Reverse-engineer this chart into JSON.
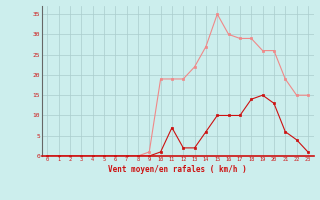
{
  "x": [
    0,
    1,
    2,
    3,
    4,
    5,
    6,
    7,
    8,
    9,
    10,
    11,
    12,
    13,
    14,
    15,
    16,
    17,
    18,
    19,
    20,
    21,
    22,
    23
  ],
  "rafales": [
    0,
    0,
    0,
    0,
    0,
    0,
    0,
    0,
    0,
    1,
    19,
    19,
    19,
    22,
    27,
    35,
    30,
    29,
    29,
    26,
    26,
    19,
    15,
    15
  ],
  "moyen": [
    0,
    0,
    0,
    0,
    0,
    0,
    0,
    0,
    0,
    0,
    1,
    7,
    2,
    2,
    6,
    10,
    10,
    10,
    14,
    15,
    13,
    6,
    4,
    1
  ],
  "bg_color": "#cceeed",
  "grid_color": "#aacccc",
  "line_rafales_color": "#f08888",
  "line_moyen_color": "#cc1111",
  "axis_label_color": "#cc1111",
  "tick_color": "#cc1111",
  "xlabel": "Vent moyen/en rafales ( km/h )",
  "ylabel_ticks": [
    0,
    5,
    10,
    15,
    20,
    25,
    30,
    35
  ],
  "ylim": [
    0,
    37
  ],
  "xlim": [
    -0.5,
    23.5
  ],
  "spine_color": "#cc1111"
}
